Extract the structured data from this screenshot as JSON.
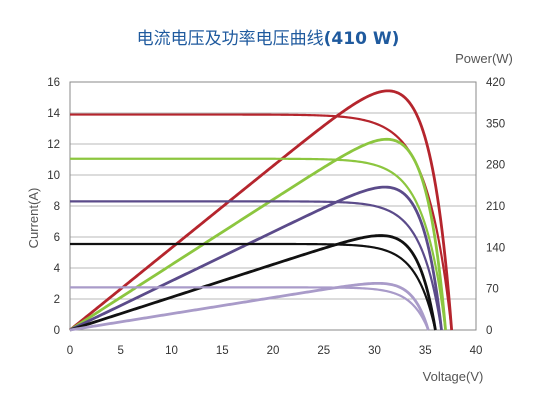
{
  "chart_data": {
    "type": "line",
    "title": "电流电压及功率电压曲线",
    "title_suffix": "(410 W)",
    "xlabel": "Voltage(V)",
    "ylabel": "Current(A)",
    "y2label": "Power(W)",
    "xlim": [
      0,
      40
    ],
    "ylim": [
      0,
      16
    ],
    "y2lim": [
      0,
      420
    ],
    "x_ticks": [
      0,
      5,
      10,
      15,
      20,
      25,
      30,
      35,
      40
    ],
    "y_ticks": [
      0,
      2,
      4,
      6,
      8,
      10,
      12,
      14,
      16
    ],
    "y2_ticks": [
      0,
      70,
      140,
      210,
      280,
      350,
      420
    ],
    "grid": true,
    "legend": "none",
    "series": [
      {
        "color": "#b5252d",
        "isc": 13.9,
        "voc": 37.6,
        "pmax": 405,
        "vmp": 31.0
      },
      {
        "color": "#8cc63f",
        "isc": 11.05,
        "voc": 37.0,
        "pmax": 323,
        "vmp": 31.0
      },
      {
        "color": "#5b4b8a",
        "isc": 8.3,
        "voc": 36.6,
        "pmax": 242,
        "vmp": 31.0
      },
      {
        "color": "#111111",
        "isc": 5.55,
        "voc": 36.0,
        "pmax": 160,
        "vmp": 31.0
      },
      {
        "color": "#a99bc9",
        "isc": 2.75,
        "voc": 35.3,
        "pmax": 79,
        "vmp": 31.0
      }
    ]
  }
}
